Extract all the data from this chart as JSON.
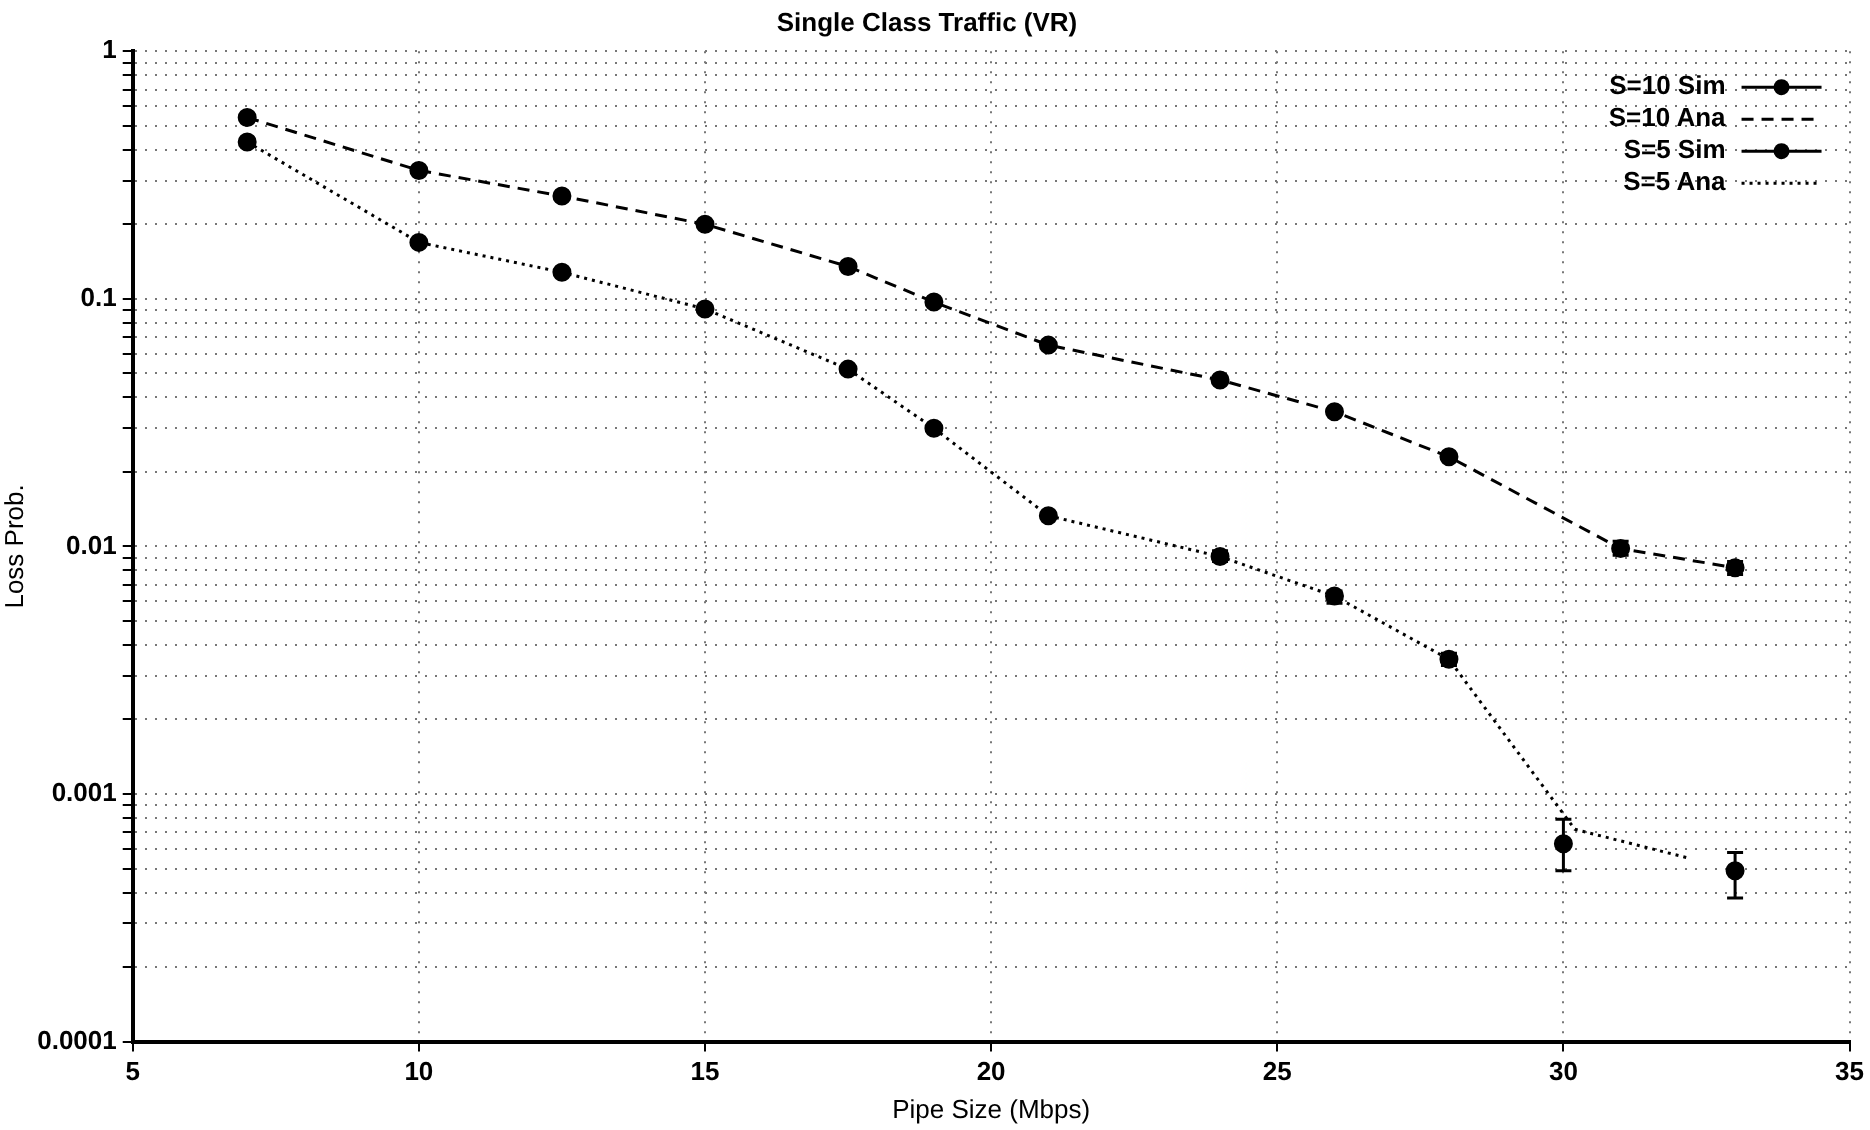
{
  "chart_data": {
    "type": "line",
    "title": "Single Class Traffic (VR)",
    "xlabel": "Pipe Size (Mbps)",
    "ylabel": "Loss Prob.",
    "log": "y",
    "grid": true,
    "legend": "top right",
    "xlim": [
      5,
      35
    ],
    "xticks": [
      5,
      10,
      15,
      20,
      25,
      30,
      35
    ],
    "ylim": [
      0.0001,
      1
    ],
    "yticks": [
      0.0001,
      {
        "value": 0.0002,
        "label": null
      },
      {
        "value": 0.0003,
        "label": null
      },
      {
        "value": 0.0004,
        "label": null
      },
      {
        "value": 0.0005,
        "label": null
      },
      {
        "value": 0.0006,
        "label": null
      },
      {
        "value": 0.0007,
        "label": null
      },
      {
        "value": 0.0008,
        "label": null
      },
      {
        "value": 0.0009,
        "label": null
      },
      0.001,
      {
        "value": 0.002,
        "label": null
      },
      {
        "value": 0.003,
        "label": null
      },
      {
        "value": 0.004,
        "label": null
      },
      {
        "value": 0.005,
        "label": null
      },
      {
        "value": 0.006,
        "label": null
      },
      {
        "value": 0.007,
        "label": null
      },
      {
        "value": 0.008,
        "label": null
      },
      {
        "value": 0.009,
        "label": null
      },
      0.01,
      {
        "value": 0.02,
        "label": null
      },
      {
        "value": 0.03,
        "label": null
      },
      {
        "value": 0.04,
        "label": null
      },
      {
        "value": 0.05,
        "label": null
      },
      {
        "value": 0.06,
        "label": null
      },
      {
        "value": 0.07,
        "label": null
      },
      {
        "value": 0.08,
        "label": null
      },
      {
        "value": 0.09,
        "label": null
      },
      0.1,
      {
        "value": 0.2,
        "label": null
      },
      {
        "value": 0.3,
        "label": null
      },
      {
        "value": 0.4,
        "label": null
      },
      {
        "value": 0.5,
        "label": null
      },
      {
        "value": 0.6,
        "label": null
      },
      {
        "value": 0.7,
        "label": null
      },
      {
        "value": 0.8,
        "label": null
      },
      {
        "value": 0.9,
        "label": null
      },
      1
    ],
    "series": [
      {
        "name": "S=10 Sim",
        "type": "scatter",
        "color": "#000000",
        "marker": "circle",
        "x": [
          7,
          10,
          12.5,
          15,
          17.5,
          19,
          21,
          24,
          26,
          28,
          31,
          33
        ],
        "values": [
          0.54,
          0.33,
          0.26,
          0.2,
          0.135,
          0.097,
          0.065,
          0.047,
          0.035,
          0.023,
          0.0098,
          0.0082
        ],
        "errors": [
          null,
          null,
          null,
          null,
          null,
          null,
          null,
          null,
          null,
          null,
          [
            0.0092,
            0.0105
          ],
          [
            0.0077,
            0.0087
          ]
        ]
      },
      {
        "name": "S=10 Ana",
        "type": "line",
        "color": "#000000",
        "line_style": "dashed",
        "x": [
          7,
          10,
          12.5,
          15,
          17.5,
          19,
          21,
          24,
          26,
          28,
          31,
          33
        ],
        "values": [
          0.54,
          0.33,
          0.26,
          0.2,
          0.135,
          0.097,
          0.065,
          0.047,
          0.035,
          0.023,
          0.0098,
          0.0082
        ]
      },
      {
        "name": "S=5 Sim",
        "type": "scatter",
        "color": "#000000",
        "marker": "circle",
        "x": [
          7,
          10,
          12.5,
          15,
          17.5,
          19,
          21,
          24,
          26,
          28,
          30,
          33
        ],
        "values": [
          0.43,
          0.169,
          0.128,
          0.091,
          0.052,
          0.03,
          0.0133,
          0.0091,
          0.0063,
          0.0035,
          0.00063,
          0.00049
        ],
        "errors": [
          null,
          null,
          null,
          null,
          null,
          null,
          null,
          [
            0.0087,
            0.0096
          ],
          [
            0.0059,
            0.0066
          ],
          [
            0.0033,
            0.0037
          ],
          [
            0.00049,
            0.00079
          ],
          [
            0.00038,
            0.00058
          ]
        ]
      },
      {
        "name": "S=5 Ana",
        "type": "line",
        "color": "#000000",
        "line_style": "dotted",
        "x": [
          7,
          10,
          12.5,
          15,
          17.5,
          19,
          21,
          24,
          26,
          28,
          30.2,
          32.2
        ],
        "values": [
          0.43,
          0.169,
          0.128,
          0.091,
          0.052,
          0.03,
          0.0133,
          0.0091,
          0.0063,
          0.0035,
          0.00072,
          0.00055
        ]
      }
    ]
  }
}
